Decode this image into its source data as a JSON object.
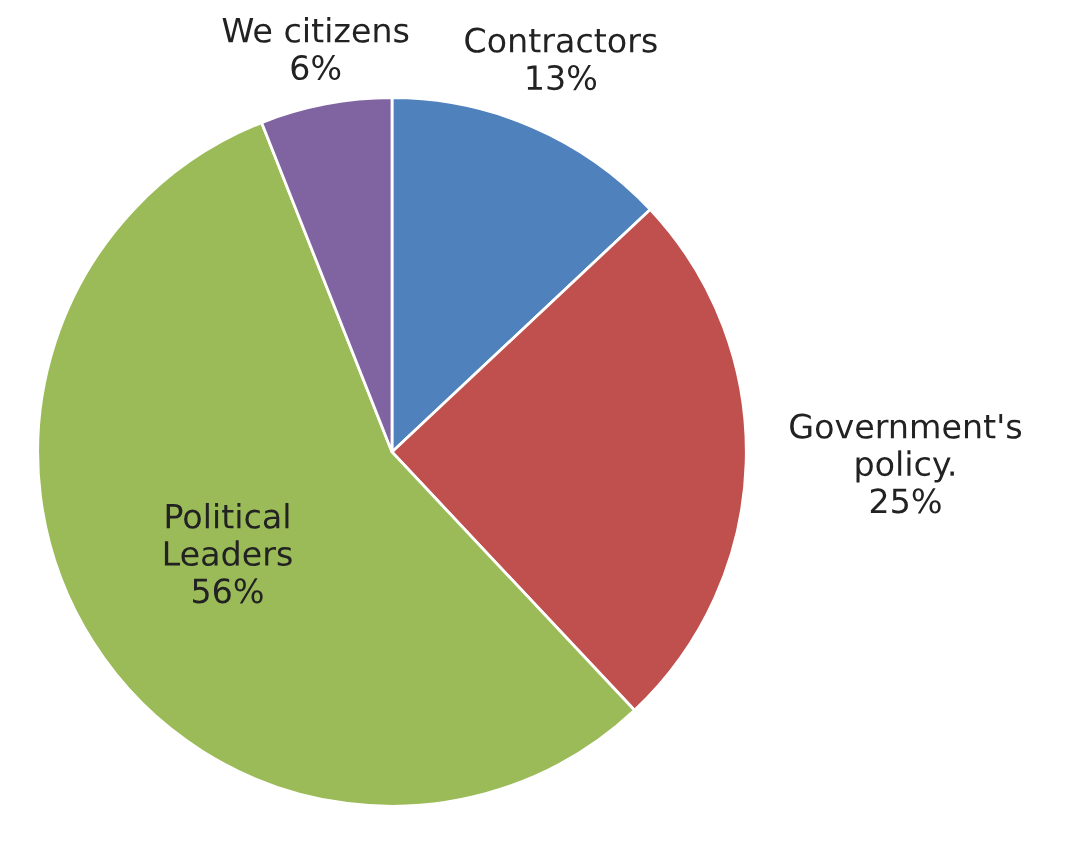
{
  "chart_data": {
    "type": "pie",
    "categories": [
      "Contractors",
      "Government's\npolicy.",
      "Political\nLeaders",
      "We citizens"
    ],
    "values": [
      13,
      25,
      56,
      6
    ],
    "value_labels": [
      "13%",
      "25%",
      "56%",
      "6%"
    ],
    "colors": [
      "#4f81bd",
      "#c0504d",
      "#9bbb59",
      "#8064a2"
    ],
    "legend": false
  }
}
